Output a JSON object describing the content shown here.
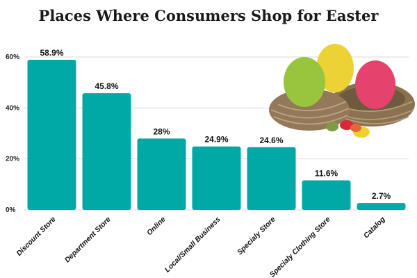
{
  "chart_data": {
    "type": "bar",
    "title": "Places Where Consumers Shop for Easter",
    "xlabel": "",
    "ylabel": "",
    "categories": [
      "Discount Store",
      "Department Store",
      "Online",
      "Local/Small Business",
      "Specialy Store",
      "Specialy Clothing Store",
      "Catalog"
    ],
    "values": [
      58.9,
      45.8,
      28,
      24.9,
      24.6,
      11.6,
      2.7
    ],
    "data_labels": [
      "58.9%",
      "45.8%",
      "28%",
      "24.9%",
      "24.6%",
      "11.6%",
      "2.7%"
    ],
    "ylim": [
      0,
      60
    ],
    "yticks": [
      0,
      20,
      40,
      60
    ],
    "ytick_labels": [
      "0%",
      "20%",
      "40%",
      "60%"
    ],
    "grid": true,
    "colors": {
      "bar": "#00a9a5",
      "grid": "#d9d9d9",
      "background": "#ffffff"
    },
    "decoration": "easter-eggs-in-nests-photo"
  }
}
